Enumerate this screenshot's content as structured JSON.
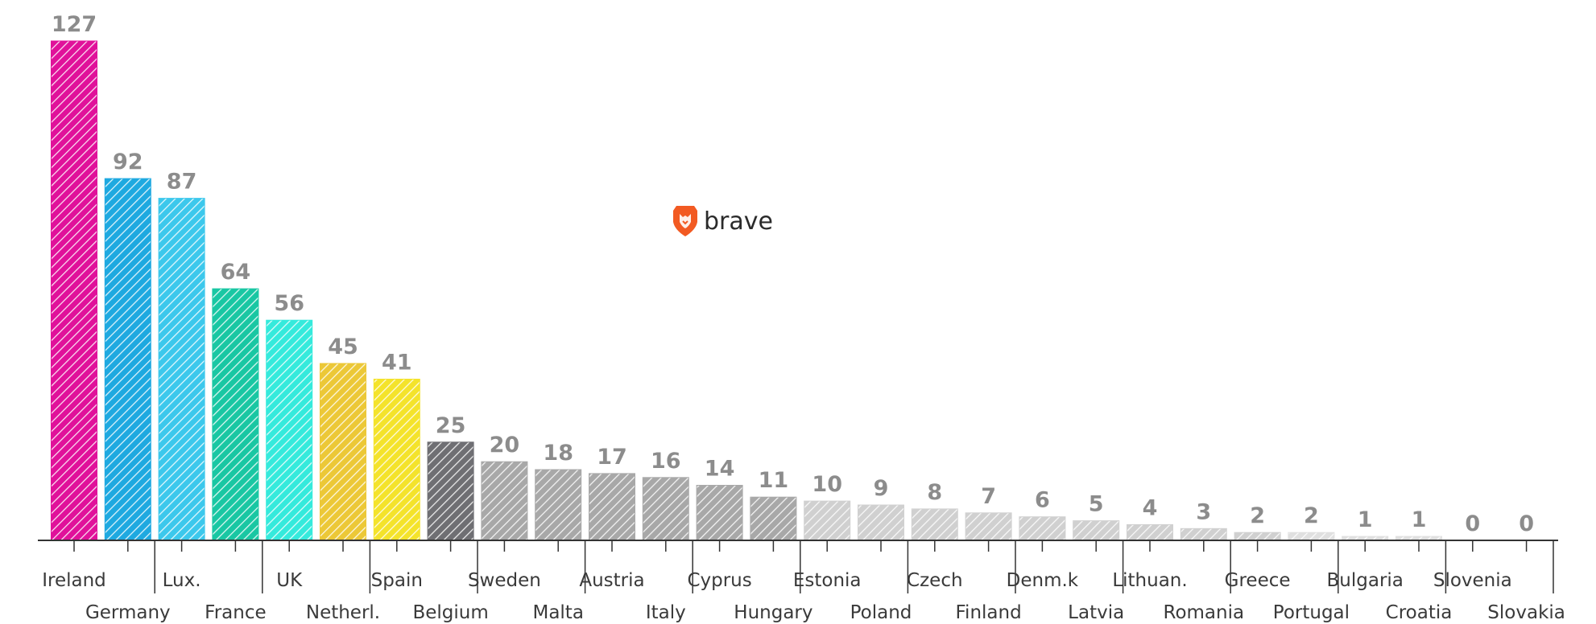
{
  "brand": {
    "logo_text": "brave"
  },
  "colors": {
    "ireland": "#e0119a",
    "germany": "#1ea9e0",
    "lux": "#3cc8ec",
    "france": "#19c7a3",
    "uk": "#35eadc",
    "netherl": "#ecc837",
    "spain": "#f4e32b",
    "belgium": "#6f6f73",
    "dark_grey": "#a8a8a8",
    "light_grey": "#d0d0d0",
    "lighter_grey": "#e0e0e0",
    "value_label": "#8c8c8c",
    "axis": "#333333"
  },
  "chart_data": {
    "type": "bar",
    "categories": [
      "Ireland",
      "Germany",
      "Lux.",
      "France",
      "UK",
      "Netherl.",
      "Spain",
      "Belgium",
      "Sweden",
      "Malta",
      "Austria",
      "Italy",
      "Cyprus",
      "Hungary",
      "Estonia",
      "Poland",
      "Czech",
      "Finland",
      "Denm.k",
      "Latvia",
      "Lithuan.",
      "Romania",
      "Greece",
      "Portugal",
      "Bulgaria",
      "Croatia",
      "Slovenia",
      "Slovakia"
    ],
    "values": [
      127,
      92,
      87,
      64,
      56,
      45,
      41,
      25,
      20,
      18,
      17,
      16,
      14,
      11,
      10,
      9,
      8,
      7,
      6,
      5,
      4,
      3,
      2,
      2,
      1,
      1,
      0,
      0
    ],
    "bar_colors": [
      "#e0119a",
      "#1ea9e0",
      "#3cc8ec",
      "#19c7a3",
      "#35eadc",
      "#ecc837",
      "#f4e32b",
      "#6f6f73",
      "#a8a8a8",
      "#a8a8a8",
      "#a8a8a8",
      "#a8a8a8",
      "#a8a8a8",
      "#a8a8a8",
      "#d0d0d0",
      "#d0d0d0",
      "#d0d0d0",
      "#d0d0d0",
      "#d0d0d0",
      "#d0d0d0",
      "#d0d0d0",
      "#d0d0d0",
      "#d0d0d0",
      "#e0e0e0",
      "#e0e0e0",
      "#e0e0e0",
      "#e0e0e0",
      "#e0e0e0"
    ],
    "title": "",
    "xlabel": "",
    "ylabel": "",
    "ylim": [
      0,
      127
    ],
    "grid": false,
    "bar_pattern": "diagonal-hatch",
    "category_labels": "alternating-two-rows"
  }
}
